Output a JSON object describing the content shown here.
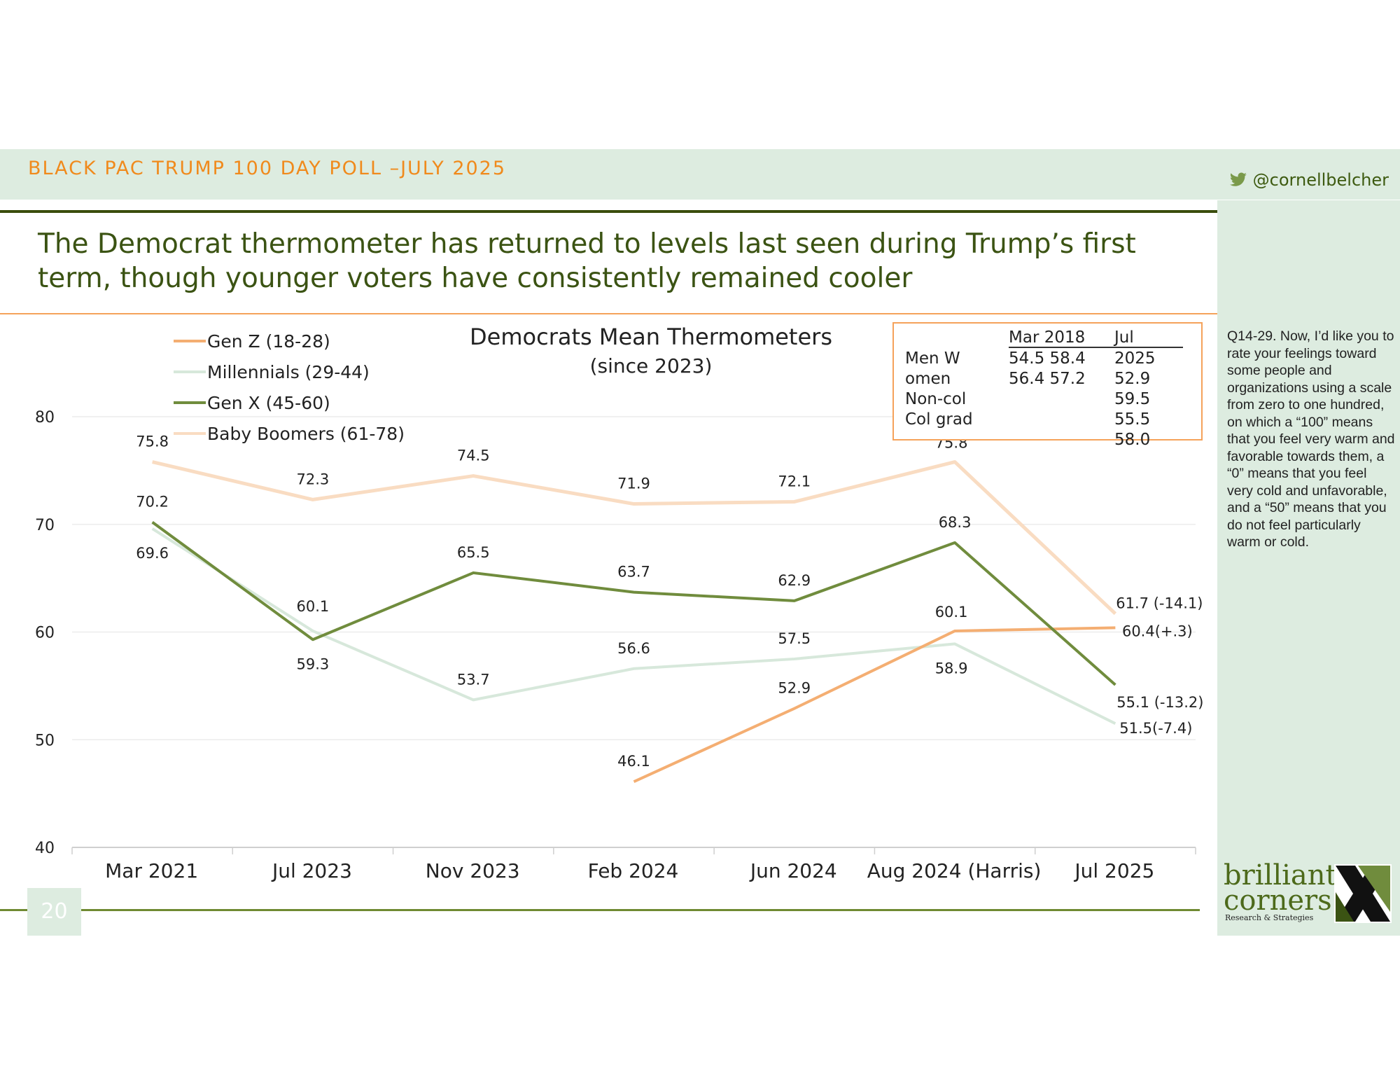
{
  "header": {
    "title": "BLACK PAC TRUMP 100 DAY POLL –JULY 2025",
    "handle": "@cornellbelcher",
    "handle_icon": "twitter-bird-icon"
  },
  "headline": "The Democrat thermometer has returned to levels last seen during Trump’s first term, though younger voters have consistently remained cooler",
  "side_note": "Q14-29. Now, I’d like you to rate your feelings toward some people and organizations using a scale from zero to one hundred, on which a “100” means that you feel very warm and favorable towards them, a “0” means that you feel very cold and unfavorable, and a “50” means that you do not feel particularly warm or cold.",
  "page_number": "20",
  "logo": {
    "line1": "brilliant",
    "line2": "corners",
    "line3": "Research & Strategies"
  },
  "inset_table": {
    "headers": [
      "Mar 2018",
      "Jul"
    ],
    "col1": [
      "54.5 58.4",
      "56.4 57.2"
    ],
    "col2": [
      "2025",
      "52.9",
      "59.5",
      "55.5",
      "58.0"
    ],
    "labels": [
      "Men W",
      "omen",
      "Non-col",
      "Col grad"
    ]
  },
  "colors": {
    "gen_z": "#f4ae72",
    "millennials": "#d7e8db",
    "gen_x": "#708c3d",
    "boomers": "#f9dcc2",
    "accent_orange": "#f08a1c",
    "band": "#ddece0",
    "dark_green": "#3a4d0c"
  },
  "chart_data": {
    "type": "line",
    "title": "Democrats Mean Thermometers",
    "subtitle": "(since 2023)",
    "categories": [
      "Mar 2021",
      "Jul 2023",
      "Nov 2023",
      "Feb 2024",
      "Jun 2024",
      "Aug 2024 (Harris)",
      "Jul 2025"
    ],
    "ylim": [
      40,
      80
    ],
    "yticks": [
      40,
      50,
      60,
      70,
      80
    ],
    "legend_position": "top-left",
    "series": [
      {
        "name": "Gen Z (18-28)",
        "color": "#f4ae72",
        "values": [
          null,
          null,
          null,
          46.1,
          52.9,
          60.1,
          60.4
        ],
        "labels": [
          null,
          null,
          null,
          "46.1",
          "52.9",
          "60.1",
          "60.4(+.3)"
        ]
      },
      {
        "name": "Millennials (29-44)",
        "color": "#d7e8db",
        "values": [
          69.6,
          60.1,
          53.7,
          56.6,
          57.5,
          58.9,
          51.5
        ],
        "labels": [
          "69.6",
          "60.1",
          "53.7",
          "56.6",
          "57.5",
          "58.9",
          "51.5(-7.4)"
        ]
      },
      {
        "name": "Gen X (45-60)",
        "color": "#708c3d",
        "values": [
          70.2,
          59.3,
          65.5,
          63.7,
          62.9,
          68.3,
          55.1
        ],
        "labels": [
          "70.2",
          "59.3",
          "65.5",
          "63.7",
          "62.9",
          "68.3",
          "55.1 (-13.2)"
        ]
      },
      {
        "name": "Baby Boomers (61-78)",
        "color": "#f9dcc2",
        "values": [
          75.8,
          72.3,
          74.5,
          71.9,
          72.1,
          75.8,
          61.7
        ],
        "labels": [
          "75.8",
          "72.3",
          "74.5",
          "71.9",
          "72.1",
          "75.8",
          "61.7 (-14.1)"
        ]
      }
    ]
  }
}
